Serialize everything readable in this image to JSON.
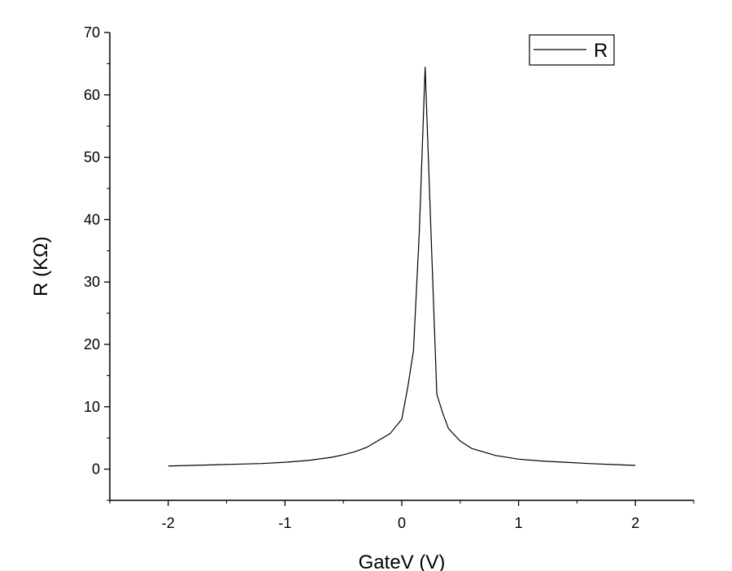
{
  "chart_data": {
    "type": "line",
    "title": "",
    "xlabel": "GateV (V)",
    "ylabel": "R (KΩ)",
    "xlim": [
      -2.5,
      2.5
    ],
    "ylim": [
      -5,
      70
    ],
    "x_ticks": [
      -2,
      -1,
      0,
      1,
      2
    ],
    "y_ticks": [
      0,
      10,
      20,
      30,
      40,
      50,
      60,
      70
    ],
    "x_tick_labels": [
      "-2",
      "-1",
      "0",
      "1",
      "2"
    ],
    "y_tick_labels": [
      "0",
      "10",
      "20",
      "30",
      "40",
      "50",
      "60",
      "70"
    ],
    "grid": false,
    "legend": {
      "position": "top-right",
      "entries": [
        "R"
      ]
    },
    "series": [
      {
        "name": "R",
        "color": "#000000",
        "x": [
          -2.0,
          -1.8,
          -1.6,
          -1.4,
          -1.2,
          -1.0,
          -0.8,
          -0.6,
          -0.5,
          -0.4,
          -0.3,
          -0.2,
          -0.1,
          0.0,
          0.05,
          0.1,
          0.15,
          0.2,
          0.25,
          0.3,
          0.35,
          0.4,
          0.5,
          0.6,
          0.8,
          1.0,
          1.2,
          1.4,
          1.6,
          1.8,
          2.0
        ],
        "y": [
          0.5,
          0.6,
          0.7,
          0.8,
          0.9,
          1.1,
          1.4,
          1.9,
          2.3,
          2.8,
          3.5,
          4.6,
          5.7,
          8.0,
          13.0,
          19.0,
          38.0,
          64.5,
          38.0,
          12.0,
          9.0,
          6.5,
          4.5,
          3.3,
          2.2,
          1.6,
          1.3,
          1.1,
          0.9,
          0.75,
          0.6
        ]
      }
    ]
  }
}
